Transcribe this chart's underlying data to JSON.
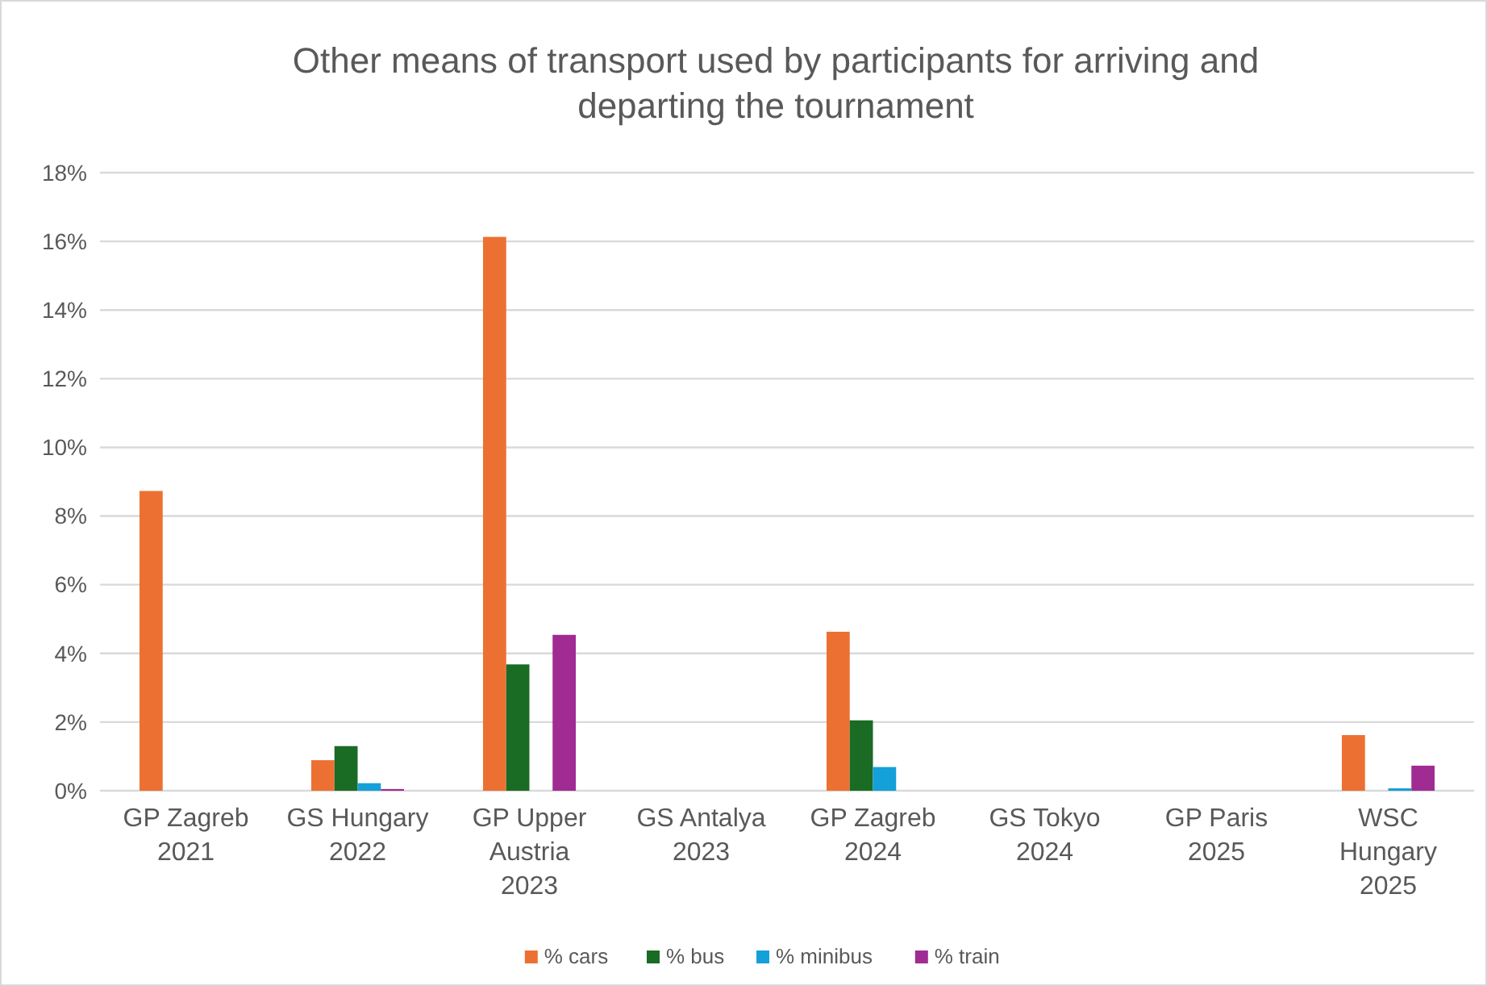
{
  "chart_data": {
    "type": "bar",
    "title": "Other means of transport used by participants for arriving and departing the tournament",
    "categories": [
      "GP Zagreb 2021",
      "GS Hungary 2022",
      "GP Upper Austria 2023",
      "GS Antalya 2023",
      "GP Zagreb 2024",
      "GS Tokyo 2024",
      "GP Paris 2025",
      "WSC Hungary 2025"
    ],
    "series": [
      {
        "name": "% cars",
        "color": "#ed7033",
        "values": [
          8.73,
          0.89,
          16.13,
          0,
          4.63,
          0,
          0,
          1.62
        ]
      },
      {
        "name": "% bus",
        "color": "#1a6b24",
        "values": [
          0,
          1.3,
          3.68,
          0,
          2.05,
          0,
          0,
          0
        ]
      },
      {
        "name": "% minibus",
        "color": "#14a0d9",
        "values": [
          0,
          0.22,
          0,
          0,
          0.69,
          0,
          0,
          0.07
        ]
      },
      {
        "name": "% train",
        "color": "#a02b93",
        "values": [
          0,
          0.05,
          4.54,
          0,
          0,
          0,
          0,
          0.73
        ]
      }
    ],
    "ylim": [
      0,
      18
    ],
    "yticks": [
      {
        "value": 0,
        "label": "0%"
      },
      {
        "value": 2,
        "label": "2%"
      },
      {
        "value": 4,
        "label": "4%"
      },
      {
        "value": 6,
        "label": "6%"
      },
      {
        "value": 8,
        "label": "8%"
      },
      {
        "value": 10,
        "label": "10%"
      },
      {
        "value": 12,
        "label": "12%"
      },
      {
        "value": 14,
        "label": "14%"
      },
      {
        "value": 16,
        "label": "16%"
      },
      {
        "value": 18,
        "label": "18%"
      }
    ],
    "grid": "y",
    "legend": "bottom"
  }
}
